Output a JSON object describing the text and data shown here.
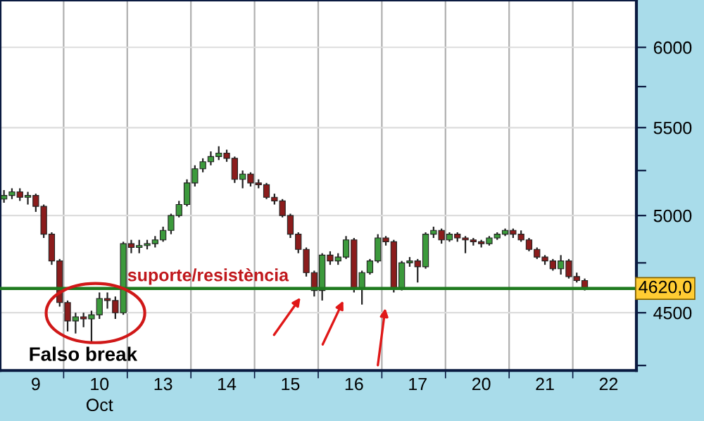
{
  "chart_data": {
    "type": "candlestick",
    "categories": [
      null,
      null,
      null,
      null,
      "9",
      null,
      null,
      null,
      null,
      null,
      null,
      null,
      "10",
      null,
      null,
      null,
      null,
      null,
      null,
      null,
      "13",
      null,
      null,
      null,
      null,
      null,
      null,
      null,
      "14",
      null,
      null,
      null,
      null,
      null,
      null,
      null,
      "15",
      null,
      null,
      null,
      null,
      null,
      null,
      null,
      "16",
      null,
      null,
      null,
      null,
      null,
      null,
      null,
      "17",
      null,
      null,
      null,
      null,
      null,
      null,
      null,
      "20",
      null,
      null,
      null,
      null,
      null,
      null,
      null,
      "21",
      null,
      null,
      null,
      null,
      null,
      null,
      null,
      "22",
      null,
      null,
      null
    ],
    "ohlc": [
      [
        5090,
        5140,
        5070,
        5110
      ],
      [
        5110,
        5150,
        5090,
        5130
      ],
      [
        5130,
        5150,
        5080,
        5100
      ],
      [
        5100,
        5130,
        5060,
        5110
      ],
      [
        5110,
        5120,
        5020,
        5050
      ],
      [
        5050,
        5060,
        4880,
        4900
      ],
      [
        4900,
        4910,
        4740,
        4760
      ],
      [
        4760,
        4770,
        4530,
        4550
      ],
      [
        4550,
        4560,
        4410,
        4460
      ],
      [
        4460,
        4500,
        4400,
        4480
      ],
      [
        4480,
        4500,
        4430,
        4470
      ],
      [
        4470,
        4510,
        4360,
        4490
      ],
      [
        4490,
        4600,
        4470,
        4570
      ],
      [
        4570,
        4600,
        4520,
        4560
      ],
      [
        4560,
        4580,
        4470,
        4500
      ],
      [
        4500,
        4860,
        4490,
        4850
      ],
      [
        4850,
        4870,
        4800,
        4830
      ],
      [
        4830,
        4870,
        4800,
        4840
      ],
      [
        4840,
        4870,
        4820,
        4850
      ],
      [
        4850,
        4890,
        4830,
        4870
      ],
      [
        4870,
        4940,
        4860,
        4920
      ],
      [
        4920,
        5010,
        4900,
        5000
      ],
      [
        5000,
        5080,
        4990,
        5060
      ],
      [
        5060,
        5200,
        5050,
        5180
      ],
      [
        5180,
        5280,
        5160,
        5260
      ],
      [
        5260,
        5320,
        5240,
        5300
      ],
      [
        5300,
        5360,
        5280,
        5330
      ],
      [
        5330,
        5390,
        5310,
        5350
      ],
      [
        5350,
        5370,
        5300,
        5320
      ],
      [
        5320,
        5330,
        5180,
        5200
      ],
      [
        5200,
        5250,
        5150,
        5230
      ],
      [
        5230,
        5240,
        5160,
        5180
      ],
      [
        5180,
        5200,
        5150,
        5170
      ],
      [
        5170,
        5180,
        5090,
        5100
      ],
      [
        5100,
        5120,
        5060,
        5080
      ],
      [
        5080,
        5090,
        4990,
        5000
      ],
      [
        5000,
        5010,
        4880,
        4900
      ],
      [
        4900,
        4910,
        4800,
        4820
      ],
      [
        4820,
        4830,
        4680,
        4700
      ],
      [
        4700,
        4710,
        4580,
        4610
      ],
      [
        4610,
        4800,
        4560,
        4790
      ],
      [
        4790,
        4810,
        4740,
        4760
      ],
      [
        4760,
        4800,
        4740,
        4780
      ],
      [
        4780,
        4890,
        4770,
        4870
      ],
      [
        4870,
        4880,
        4600,
        4620
      ],
      [
        4620,
        4710,
        4540,
        4700
      ],
      [
        4700,
        4770,
        4690,
        4760
      ],
      [
        4760,
        4900,
        4750,
        4880
      ],
      [
        4880,
        4890,
        4840,
        4860
      ],
      [
        4860,
        4870,
        4600,
        4620
      ],
      [
        4620,
        4760,
        4610,
        4750
      ],
      [
        4750,
        4780,
        4730,
        4760
      ],
      [
        4760,
        4770,
        4650,
        4730
      ],
      [
        4730,
        4910,
        4720,
        4900
      ],
      [
        4900,
        4940,
        4880,
        4920
      ],
      [
        4920,
        4930,
        4850,
        4870
      ],
      [
        4870,
        4910,
        4860,
        4900
      ],
      [
        4900,
        4910,
        4860,
        4880
      ],
      [
        4880,
        4890,
        4800,
        4870
      ],
      [
        4870,
        4880,
        4840,
        4860
      ],
      [
        4860,
        4870,
        4830,
        4850
      ],
      [
        4850,
        4890,
        4840,
        4880
      ],
      [
        4880,
        4910,
        4870,
        4900
      ],
      [
        4900,
        4930,
        4890,
        4920
      ],
      [
        4920,
        4930,
        4880,
        4900
      ],
      [
        4900,
        4920,
        4860,
        4870
      ],
      [
        4870,
        4880,
        4810,
        4820
      ],
      [
        4820,
        4830,
        4770,
        4780
      ],
      [
        4780,
        4790,
        4740,
        4760
      ],
      [
        4760,
        4770,
        4710,
        4720
      ],
      [
        4720,
        4790,
        4690,
        4760
      ],
      [
        4760,
        4770,
        4670,
        4680
      ],
      [
        4680,
        4700,
        4650,
        4660
      ],
      [
        4660,
        4670,
        4610,
        4620
      ],
      null,
      null,
      null,
      null,
      null,
      null
    ],
    "colors": [
      "#3c9a3c",
      "#3c9a3c",
      "#8b1c1c",
      "#3c9a3c",
      "#8b1c1c",
      "#8b1c1c",
      "#8b1c1c",
      "#8b1c1c",
      "#8b1c1c",
      "#3c9a3c",
      "#8b1c1c",
      "#3c9a3c",
      "#3c9a3c",
      "#8b1c1c",
      "#8b1c1c",
      "#3c9a3c",
      "#8b1c1c",
      "#3c9a3c",
      "#3c9a3c",
      "#3c9a3c",
      "#3c9a3c",
      "#3c9a3c",
      "#3c9a3c",
      "#3c9a3c",
      "#3c9a3c",
      "#3c9a3c",
      "#3c9a3c",
      "#3c9a3c",
      "#8b1c1c",
      "#8b1c1c",
      "#3c9a3c",
      "#8b1c1c",
      "#8b1c1c",
      "#8b1c1c",
      "#8b1c1c",
      "#8b1c1c",
      "#8b1c1c",
      "#8b1c1c",
      "#8b1c1c",
      "#8b1c1c",
      "#3c9a3c",
      "#8b1c1c",
      "#3c9a3c",
      "#3c9a3c",
      "#8b1c1c",
      "#3c9a3c",
      "#3c9a3c",
      "#3c9a3c",
      "#8b1c1c",
      "#8b1c1c",
      "#3c9a3c",
      "#3c9a3c",
      "#8b1c1c",
      "#3c9a3c",
      "#3c9a3c",
      "#8b1c1c",
      "#3c9a3c",
      "#8b1c1c",
      "#8b1c1c",
      "#8b1c1c",
      "#8b1c1c",
      "#3c9a3c",
      "#3c9a3c",
      "#3c9a3c",
      "#8b1c1c",
      "#8b1c1c",
      "#8b1c1c",
      "#8b1c1c",
      "#8b1c1c",
      "#8b1c1c",
      "#3c9a3c",
      "#8b1c1c",
      "#8b1c1c",
      "#8b1c1c",
      null,
      null,
      null,
      null,
      null,
      null
    ],
    "log": true,
    "ylim": [
      4227,
      6316
    ],
    "yticks": [
      {
        "value": 4250,
        "label": null
      },
      4500,
      {
        "value": 4750,
        "label": null
      },
      5000,
      {
        "value": 5250,
        "label": null
      },
      5500,
      {
        "value": 5750,
        "label": null
      },
      6000
    ],
    "grid": true,
    "xlabel": "Oct",
    "ref_lines": [
      {
        "axis": "y",
        "value": 4620,
        "label": "4620,0",
        "color": "#1f7a1f"
      }
    ],
    "annotations": [
      {
        "text": "suporte/resistència",
        "x": "10",
        "y": 4620
      },
      "Falso break"
    ]
  }
}
